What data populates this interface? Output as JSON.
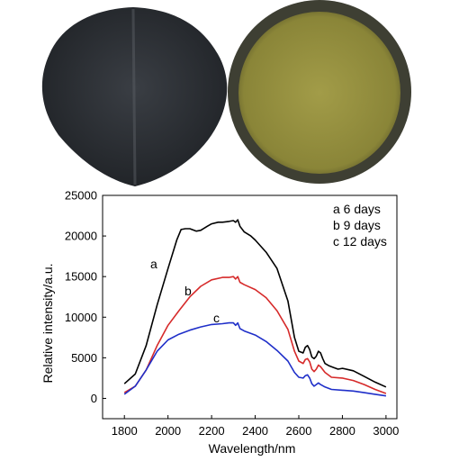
{
  "photos": [
    {
      "name": "dark sample disk",
      "color": "#2b2e33"
    },
    {
      "name": "yellow sample disk",
      "color": "#8e8a3e"
    }
  ],
  "chart_data": {
    "type": "line",
    "xlabel": "Wavelength/nm",
    "ylabel": "Relative intensity/a.u.",
    "xlim": [
      1700,
      3050
    ],
    "ylim": [
      -2500,
      25000
    ],
    "xticks": [
      1800,
      2000,
      2200,
      2400,
      2600,
      2800,
      3000
    ],
    "yticks": [
      0,
      5000,
      10000,
      15000,
      20000,
      25000
    ],
    "legend": [
      "a 6 days",
      "b 9 days",
      "c 12 days"
    ],
    "legend_position": "top-right",
    "series": [
      {
        "name": "a",
        "color": "#000000",
        "x": [
          1800,
          1850,
          1900,
          1950,
          2000,
          2040,
          2060,
          2080,
          2100,
          2130,
          2150,
          2180,
          2200,
          2230,
          2250,
          2280,
          2300,
          2310,
          2320,
          2330,
          2350,
          2380,
          2400,
          2450,
          2500,
          2550,
          2580,
          2600,
          2620,
          2630,
          2640,
          2650,
          2660,
          2670,
          2680,
          2690,
          2700,
          2710,
          2720,
          2740,
          2760,
          2780,
          2800,
          2850,
          2900,
          2950,
          3000
        ],
        "y": [
          1800,
          3000,
          6500,
          11500,
          16000,
          19500,
          20800,
          20900,
          20900,
          20600,
          20700,
          21200,
          21500,
          21700,
          21700,
          21800,
          21900,
          21700,
          22000,
          21200,
          20500,
          20000,
          19500,
          18000,
          16000,
          12000,
          7500,
          5800,
          5600,
          6300,
          6500,
          6000,
          5100,
          4900,
          5200,
          5800,
          5600,
          4900,
          4300,
          4000,
          3800,
          3600,
          3700,
          3400,
          2700,
          2000,
          1400
        ]
      },
      {
        "name": "b",
        "color": "#d62a2a",
        "x": [
          1800,
          1850,
          1900,
          1950,
          2000,
          2050,
          2100,
          2150,
          2200,
          2250,
          2280,
          2300,
          2310,
          2320,
          2330,
          2350,
          2400,
          2450,
          2500,
          2550,
          2580,
          2600,
          2620,
          2630,
          2640,
          2650,
          2660,
          2670,
          2680,
          2690,
          2700,
          2720,
          2750,
          2800,
          2850,
          2900,
          2950,
          3000
        ],
        "y": [
          700,
          1500,
          3500,
          6500,
          9000,
          10800,
          12500,
          13800,
          14600,
          14900,
          14900,
          15000,
          14700,
          15000,
          14300,
          14000,
          13400,
          12400,
          10800,
          8500,
          5800,
          4600,
          4300,
          4800,
          4900,
          4500,
          3600,
          3300,
          3600,
          4100,
          3900,
          3200,
          2600,
          2500,
          2200,
          1700,
          1100,
          600
        ]
      },
      {
        "name": "c",
        "color": "#1f2fc9",
        "x": [
          1800,
          1850,
          1900,
          1950,
          2000,
          2050,
          2100,
          2150,
          2200,
          2250,
          2280,
          2300,
          2310,
          2320,
          2330,
          2350,
          2400,
          2450,
          2500,
          2550,
          2580,
          2600,
          2620,
          2630,
          2640,
          2650,
          2660,
          2670,
          2680,
          2690,
          2700,
          2720,
          2750,
          2800,
          2850,
          2900,
          2950,
          3000
        ],
        "y": [
          500,
          1500,
          3500,
          5800,
          7200,
          7900,
          8400,
          8800,
          9100,
          9200,
          9300,
          9300,
          9000,
          9300,
          8600,
          8300,
          7800,
          7000,
          5900,
          4600,
          3200,
          2600,
          2500,
          2800,
          2900,
          2500,
          1800,
          1500,
          1700,
          1900,
          1700,
          1400,
          1100,
          1000,
          900,
          700,
          500,
          300
        ]
      }
    ]
  },
  "labels": {
    "curve_a": "a",
    "curve_b": "b",
    "curve_c": "c"
  }
}
